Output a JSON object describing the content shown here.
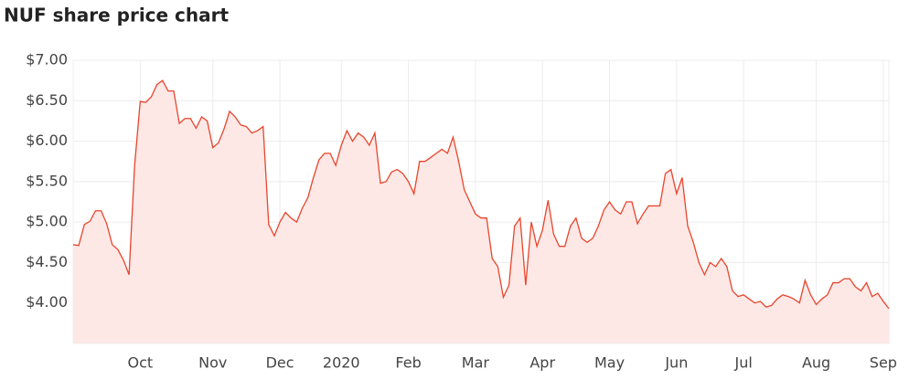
{
  "chart_data": {
    "type": "area",
    "title": "NUF share price chart",
    "categories": [
      null,
      null,
      null,
      null,
      null,
      null,
      null,
      null,
      null,
      null,
      null,
      null,
      "Oct",
      null,
      null,
      null,
      null,
      null,
      null,
      null,
      null,
      null,
      null,
      null,
      null,
      "Nov",
      null,
      null,
      null,
      null,
      null,
      null,
      null,
      null,
      null,
      null,
      null,
      "Dec",
      null,
      null,
      null,
      null,
      null,
      null,
      null,
      null,
      null,
      null,
      "2020",
      null,
      null,
      null,
      null,
      null,
      null,
      null,
      null,
      null,
      null,
      null,
      "Feb",
      null,
      null,
      null,
      null,
      null,
      null,
      null,
      null,
      null,
      null,
      null,
      "Mar",
      null,
      null,
      null,
      null,
      null,
      null,
      null,
      null,
      null,
      null,
      null,
      "Apr",
      null,
      null,
      null,
      null,
      null,
      null,
      null,
      null,
      null,
      null,
      null,
      "May",
      null,
      null,
      null,
      null,
      null,
      null,
      null,
      null,
      null,
      null,
      null,
      "Jun",
      null,
      null,
      null,
      null,
      null,
      null,
      null,
      null,
      null,
      null,
      null,
      "Jul",
      null,
      null,
      null,
      null,
      null,
      null,
      null,
      null,
      null,
      null,
      null,
      null,
      "Aug",
      null,
      null,
      null,
      null,
      null,
      null,
      null,
      null,
      null,
      null,
      null,
      "Sep",
      null
    ],
    "values": [
      4.72,
      4.71,
      4.97,
      5.01,
      5.14,
      5.14,
      4.98,
      4.72,
      4.66,
      4.53,
      4.35,
      5.7,
      6.49,
      6.48,
      6.55,
      6.7,
      6.75,
      6.62,
      6.62,
      6.22,
      6.28,
      6.28,
      6.16,
      6.3,
      6.25,
      5.92,
      5.98,
      6.15,
      6.37,
      6.3,
      6.2,
      6.18,
      6.1,
      6.13,
      6.18,
      4.97,
      4.83,
      5.0,
      5.12,
      5.05,
      5.0,
      5.17,
      5.3,
      5.55,
      5.77,
      5.85,
      5.85,
      5.7,
      5.95,
      6.13,
      6.0,
      6.1,
      6.05,
      5.95,
      6.1,
      5.48,
      5.5,
      5.62,
      5.65,
      5.6,
      5.5,
      5.35,
      5.75,
      5.75,
      5.8,
      5.85,
      5.9,
      5.85,
      6.05,
      5.75,
      5.4,
      5.25,
      5.1,
      5.05,
      5.05,
      4.55,
      4.45,
      4.07,
      4.22,
      4.95,
      5.05,
      4.22,
      5.0,
      4.7,
      4.9,
      5.27,
      4.85,
      4.7,
      4.7,
      4.95,
      5.05,
      4.8,
      4.75,
      4.8,
      4.95,
      5.15,
      5.25,
      5.15,
      5.1,
      5.25,
      5.25,
      4.98,
      5.1,
      5.2,
      5.2,
      5.2,
      5.6,
      5.65,
      5.35,
      5.55,
      4.95,
      4.75,
      4.5,
      4.35,
      4.5,
      4.45,
      4.55,
      4.45,
      4.15,
      4.08,
      4.1,
      4.05,
      4.0,
      4.02,
      3.95,
      3.97,
      4.05,
      4.1,
      4.08,
      4.05,
      4.0,
      4.28,
      4.1,
      3.98,
      4.05,
      4.1,
      4.25,
      4.25,
      4.3,
      4.3,
      4.2,
      4.15,
      4.25,
      4.08,
      4.12,
      4.02,
      3.93
    ],
    "color": "#e8452c",
    "fill": "#fde8e6",
    "ylim": [
      3.5,
      7.0
    ],
    "yticks": [
      {
        "value": 4.0,
        "label": "$4.00"
      },
      {
        "value": 4.5,
        "label": "$4.50"
      },
      {
        "value": 5.0,
        "label": "$5.00"
      },
      {
        "value": 5.5,
        "label": "$5.50"
      },
      {
        "value": 6.0,
        "label": "$6.00"
      },
      {
        "value": 6.5,
        "label": "$6.50"
      },
      {
        "value": 7.0,
        "label": "$7.00"
      }
    ],
    "grid": true
  }
}
